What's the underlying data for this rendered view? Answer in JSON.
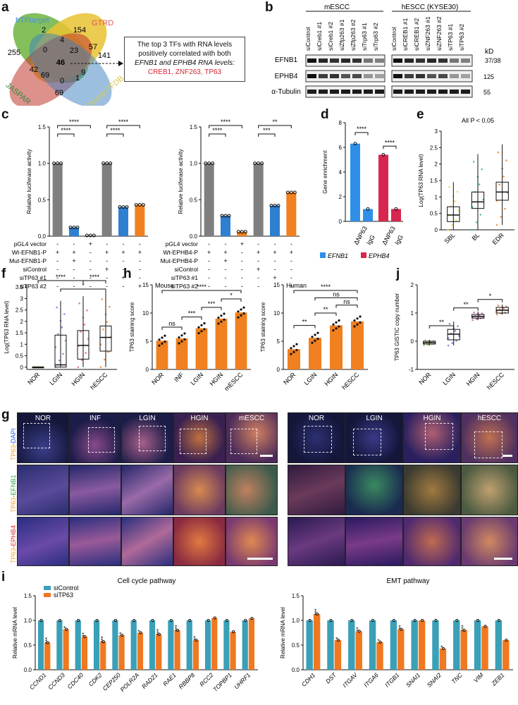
{
  "panels": {
    "a": {
      "label": "a",
      "sets": [
        "hTFtarget",
        "GTRD",
        "JASPAR",
        "humanTFDB"
      ],
      "set_colors": [
        "#4a90d9",
        "#e05555",
        "#2e8b3e",
        "#d4c94a"
      ],
      "counts": [
        "2",
        "154",
        "4",
        "255",
        "0",
        "57",
        "23",
        "46",
        "141",
        "42",
        "69",
        "9",
        "1",
        "0",
        "69"
      ],
      "box_line1": "The top 3 TFs with RNA levels",
      "box_line2": "positively correlated with both",
      "box_line3": "EFNB1 and EPHB4 RNA levels:",
      "box_line4": "CREB1, ZNF263, TP63"
    },
    "b": {
      "label": "b",
      "group1": "mESCC",
      "group2": "hESCC (KYSE30)",
      "lanes1": [
        "siControl",
        "siCreb1 #1",
        "siCreb1 #2",
        "siZfp263 #1",
        "siZfp263 #2",
        "siTrp63 #1",
        "siTrp63 #2"
      ],
      "lanes2": [
        "siControl",
        "siCREB1 #1",
        "siCREB1 #2",
        "siZNF263 #1",
        "siZNF263 #2",
        "siTP63 #1",
        "siTP63 #2"
      ],
      "rows": [
        "EFNB1",
        "EPHB4",
        "α-Tubulin"
      ],
      "kd_header": "kD",
      "kd": [
        "37/38",
        "125",
        "55"
      ]
    },
    "c": {
      "label": "c",
      "stars": [
        "****",
        "****",
        "****",
        "****",
        "****",
        "****",
        "***",
        "**"
      ],
      "row_labels_left": [
        "pGL4 vector",
        "Wt-EFNB1-P",
        "Mut-EFNB1-P",
        "siControl",
        "siTP63 #1",
        "siTP63 #2"
      ],
      "row_labels_right": [
        "pGL4 vector",
        "Wt-EPHB4-P",
        "Mut-EPHB4-P",
        "siControl",
        "siTP63 #1",
        "siTP63 #2"
      ],
      "matrix": [
        [
          "-",
          "-",
          "+",
          "-",
          "-",
          "-"
        ],
        [
          "+",
          "+",
          "-",
          "+",
          "+",
          "+"
        ],
        [
          "-",
          "+",
          "-",
          "-",
          "-",
          "-"
        ],
        [
          "-",
          "-",
          "-",
          "+",
          "-",
          "-"
        ],
        [
          "-",
          "-",
          "-",
          "-",
          "+",
          "-"
        ],
        [
          "-",
          "-",
          "-",
          "-",
          "-",
          "+"
        ]
      ]
    },
    "d": {
      "label": "d",
      "stars": [
        "****",
        "****"
      ],
      "legend": [
        "EFNB1",
        "EPHB4"
      ]
    },
    "e": {
      "label": "e",
      "note": "All P < 0.05"
    },
    "f": {
      "label": "f",
      "stars": [
        "****",
        "*",
        "****"
      ]
    },
    "h": {
      "label": "h",
      "sub1": "Mouse",
      "sub2": "Human",
      "stars1": [
        "ns",
        "***",
        "***",
        "*",
        "****"
      ],
      "stars2": [
        "**",
        "**",
        "ns",
        "ns",
        "****"
      ]
    },
    "j": {
      "label": "j",
      "stars": [
        "**",
        "**",
        "*"
      ]
    },
    "g": {
      "label": "g",
      "cols_mouse": [
        "NOR",
        "INF",
        "LGIN",
        "HGIN",
        "mESCC"
      ],
      "cols_human": [
        "NOR",
        "LGIN",
        "HGIN",
        "hESCC"
      ],
      "row1_a": "TP63",
      "row1_b": "-DAPI",
      "row2_a": "TP63",
      "row2_b": "-EFNB1",
      "row3_a": "TP63",
      "row3_b": "-EPHB4"
    },
    "i": {
      "label": "i",
      "stars_left": [
        "***",
        "*",
        "**",
        "***",
        "*",
        "*",
        "***",
        "***",
        "**"
      ],
      "stars_right": [
        "***",
        "*",
        "**",
        "*",
        "**",
        "*",
        "***"
      ]
    }
  },
  "chart_data": [
    {
      "type": "bar",
      "panel": "c-left",
      "categories": [
        "1",
        "2",
        "3",
        "4",
        "5",
        "6"
      ],
      "values": [
        1.0,
        0.12,
        0.01,
        1.0,
        0.4,
        0.43
      ],
      "colors": [
        "#7f7f7f",
        "#2f7fd1",
        "#7f7f7f",
        "#7f7f7f",
        "#2f7fd1",
        "#f08020"
      ],
      "ylabel": "Relative luciferase activity",
      "ylim": [
        0,
        1.5
      ],
      "yticks": [
        "0.0",
        "0.5",
        "1.0",
        "1.5"
      ]
    },
    {
      "type": "bar",
      "panel": "c-right",
      "categories": [
        "1",
        "2",
        "3",
        "4",
        "5",
        "6"
      ],
      "values": [
        1.0,
        0.28,
        0.06,
        1.0,
        0.42,
        0.6
      ],
      "colors": [
        "#7f7f7f",
        "#2f7fd1",
        "#f08020",
        "#7f7f7f",
        "#2f7fd1",
        "#f08020"
      ],
      "ylabel": "Relative luciferase activity",
      "ylim": [
        0,
        1.5
      ],
      "yticks": [
        "0.0",
        "0.5",
        "1.0",
        "1.5"
      ]
    },
    {
      "type": "bar",
      "panel": "d",
      "categories": [
        "ΔNP63",
        "IgG",
        "ΔNP63",
        "IgG"
      ],
      "values": [
        6.3,
        1.0,
        5.4,
        1.0
      ],
      "colors": [
        "#2f8fe8",
        "#2f8fe8",
        "#d8264f",
        "#d8264f"
      ],
      "ylabel": "Gene enrichment",
      "ylim": [
        0,
        8
      ],
      "yticks": [
        "0",
        "2",
        "4",
        "6",
        "8"
      ]
    },
    {
      "type": "box",
      "panel": "e",
      "categories": [
        "SBL",
        "BL",
        "EDR"
      ],
      "median": [
        0.45,
        0.85,
        1.15
      ],
      "q1": [
        0.25,
        0.65,
        0.9
      ],
      "q3": [
        0.7,
        1.15,
        1.45
      ],
      "whisker_low": [
        0.0,
        0.0,
        0.15
      ],
      "whisker_high": [
        1.45,
        2.3,
        2.6
      ],
      "colors": [
        "#f0d040",
        "#2fb890",
        "#f08020"
      ],
      "ylabel": "Log(TP63 RNA level)",
      "ylim": [
        0,
        3
      ],
      "yticks": [
        "0",
        "0.5",
        "1",
        "1.5",
        "2",
        "2.5",
        "3"
      ]
    },
    {
      "type": "box",
      "panel": "f",
      "categories": [
        "NOR",
        "LGIN",
        "HGIN",
        "hESCC"
      ],
      "median": [
        0.0,
        0.1,
        0.95,
        1.3
      ],
      "q1": [
        0.0,
        0.0,
        0.35,
        0.7
      ],
      "q3": [
        0.0,
        1.4,
        1.6,
        1.8
      ],
      "whisker_low": [
        0.0,
        0.0,
        0.0,
        0.0
      ],
      "whisker_high": [
        0.0,
        2.9,
        3.1,
        3.3
      ],
      "colors": [
        "#9acd50",
        "#7080d0",
        "#e050a0",
        "#f08020"
      ],
      "ylabel": "Log(TP63 RNA level)",
      "ylim": [
        -0.1,
        3.6
      ],
      "yticks": [
        "0",
        "0.5",
        "1",
        "1.5",
        "2",
        "2.5",
        "3",
        "3.5"
      ]
    },
    {
      "type": "bar",
      "panel": "h-mouse",
      "categories": [
        "NOR",
        "INF",
        "LGIN",
        "HGIN",
        "mESCC"
      ],
      "values": [
        5.1,
        5.5,
        7.3,
        9.0,
        10.1
      ],
      "colors": [
        "#f08020",
        "#f08020",
        "#f08020",
        "#f08020",
        "#f08020"
      ],
      "ylabel": "TP63 staining score",
      "ylim": [
        0,
        15
      ],
      "yticks": [
        "0",
        "5",
        "10",
        "15"
      ]
    },
    {
      "type": "bar",
      "panel": "h-human",
      "categories": [
        "NOR",
        "LGIN",
        "HGIN",
        "hESCC"
      ],
      "values": [
        3.6,
        5.6,
        7.8,
        8.5
      ],
      "colors": [
        "#f08020",
        "#f08020",
        "#f08020",
        "#f08020"
      ],
      "ylabel": "TP63 staining score",
      "ylim": [
        0,
        15
      ],
      "yticks": [
        "0",
        "5",
        "10",
        "15"
      ]
    },
    {
      "type": "box",
      "panel": "j",
      "categories": [
        "NOR",
        "LGIN",
        "HGIN",
        "hESCC"
      ],
      "median": [
        -0.05,
        0.25,
        0.88,
        1.1
      ],
      "q1": [
        -0.1,
        0.05,
        0.82,
        1.0
      ],
      "q3": [
        0.0,
        0.42,
        0.95,
        1.2
      ],
      "whisker_low": [
        -0.15,
        -0.15,
        0.75,
        0.95
      ],
      "whisker_high": [
        0.05,
        0.7,
        1.05,
        1.3
      ],
      "colors": [
        "#90c860",
        "#6070c0",
        "#c060a0",
        "#d07050"
      ],
      "ylabel": "TP63 GISTIC copy number",
      "ylim": [
        -1,
        2
      ],
      "yticks": [
        "-1",
        "0",
        "1",
        "2"
      ]
    },
    {
      "type": "bar",
      "panel": "i-cell-cycle",
      "title": "Cell cycle pathway",
      "categories": [
        "CCND1",
        "CCND3",
        "CDC40",
        "CDK2",
        "CEP250",
        "POLR2A",
        "RAD21",
        "RAE1",
        "RBBP8",
        "RCC2",
        "TOPBP1",
        "UHRF1"
      ],
      "series": [
        {
          "name": "siControl",
          "values": [
            1.0,
            1.0,
            1.0,
            1.0,
            1.0,
            1.0,
            1.0,
            1.0,
            1.0,
            1.0,
            1.0,
            1.0
          ]
        },
        {
          "name": "siTP63",
          "values": [
            0.55,
            0.82,
            0.67,
            0.57,
            0.7,
            0.75,
            0.72,
            0.8,
            0.6,
            1.05,
            0.77,
            1.04
          ]
        }
      ],
      "colors": [
        "#3aa0b8",
        "#f07820"
      ],
      "ylabel": "Relative mRNA level",
      "ylim": [
        0,
        1.5
      ],
      "yticks": [
        "0.0",
        "0.5",
        "1.0",
        "1.5"
      ]
    },
    {
      "type": "bar",
      "panel": "i-emt",
      "title": "EMT pathway",
      "categories": [
        "CDH1",
        "DST",
        "ITGAV",
        "ITGA6",
        "ITGB1",
        "SNAI1",
        "SNAI2",
        "TNC",
        "VIM",
        "ZEB1"
      ],
      "series": [
        {
          "name": "siControl",
          "values": [
            1.0,
            1.0,
            1.0,
            1.0,
            1.0,
            1.0,
            1.0,
            1.0,
            1.0,
            1.0
          ]
        },
        {
          "name": "siTP63",
          "values": [
            1.13,
            0.6,
            0.78,
            0.56,
            0.82,
            1.0,
            0.43,
            0.8,
            0.88,
            0.6
          ]
        }
      ],
      "colors": [
        "#3aa0b8",
        "#f07820"
      ],
      "ylabel": "Relative mRNA level",
      "ylim": [
        0,
        1.5
      ],
      "yticks": [
        "0.0",
        "0.5",
        "1.0",
        "1.5"
      ]
    }
  ],
  "legend_i": [
    "siControl",
    "siTP63"
  ]
}
